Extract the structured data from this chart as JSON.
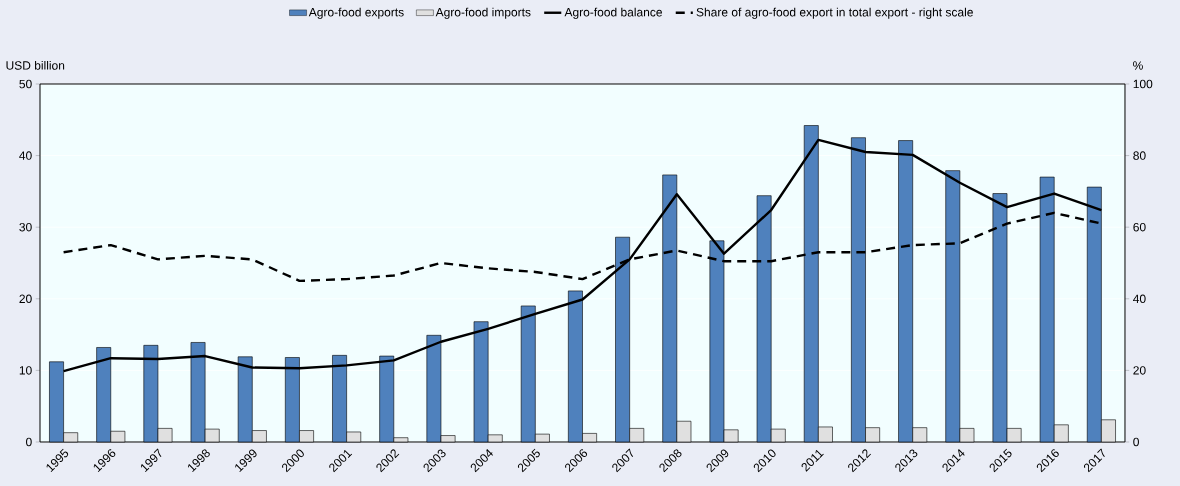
{
  "chart_data": {
    "type": "bar",
    "categories": [
      "1995",
      "1996",
      "1997",
      "1998",
      "1999",
      "2000",
      "2001",
      "2002",
      "2003",
      "2004",
      "2005",
      "2006",
      "2007",
      "2008",
      "2009",
      "2010",
      "2011",
      "2012",
      "2013",
      "2014",
      "2015",
      "2016",
      "2017"
    ],
    "ylabel": "USD billion",
    "y2label": "%",
    "ylim": [
      0,
      50
    ],
    "yticks": [
      0,
      10,
      20,
      30,
      40,
      50
    ],
    "y2lim": [
      0,
      100
    ],
    "y2ticks": [
      0,
      20,
      40,
      60,
      80,
      100
    ],
    "grid": "y",
    "legend": "top",
    "series": [
      {
        "name": "Agro-food exports",
        "color": "#4f81bd",
        "values": [
          11.2,
          13.2,
          13.5,
          13.9,
          11.9,
          11.8,
          12.1,
          12.0,
          14.9,
          16.8,
          19.0,
          21.1,
          28.6,
          37.3,
          28.1,
          34.4,
          44.2,
          42.5,
          42.1,
          37.9,
          34.7,
          37.0,
          35.6
        ]
      },
      {
        "name": "Agro-food imports",
        "color": "#e0e0e0",
        "values": [
          1.3,
          1.5,
          1.9,
          1.8,
          1.6,
          1.6,
          1.4,
          0.6,
          0.9,
          1.0,
          1.1,
          1.2,
          1.9,
          2.9,
          1.7,
          1.8,
          2.1,
          2.0,
          2.0,
          1.9,
          1.9,
          2.4,
          3.1
        ]
      },
      {
        "name": "Agro-food balance",
        "type": "line",
        "color": "#000000",
        "line_style": "solid",
        "values": [
          9.9,
          11.7,
          11.6,
          12.0,
          10.4,
          10.3,
          10.7,
          11.4,
          14.0,
          15.8,
          17.9,
          19.9,
          25.5,
          34.6,
          26.3,
          32.4,
          42.2,
          40.5,
          40.1,
          36.2,
          32.8,
          34.7,
          32.4
        ]
      },
      {
        "name": "Share of agro-food export in total export - right scale",
        "type": "line",
        "axis": "y2",
        "color": "#000000",
        "line_style": "dashed",
        "values": [
          53,
          55,
          51,
          52,
          51,
          45,
          45.5,
          46.5,
          50,
          48.5,
          47.5,
          45.5,
          51,
          53.5,
          50.5,
          50.5,
          53,
          53,
          55,
          55.5,
          61,
          64,
          61
        ]
      }
    ]
  }
}
